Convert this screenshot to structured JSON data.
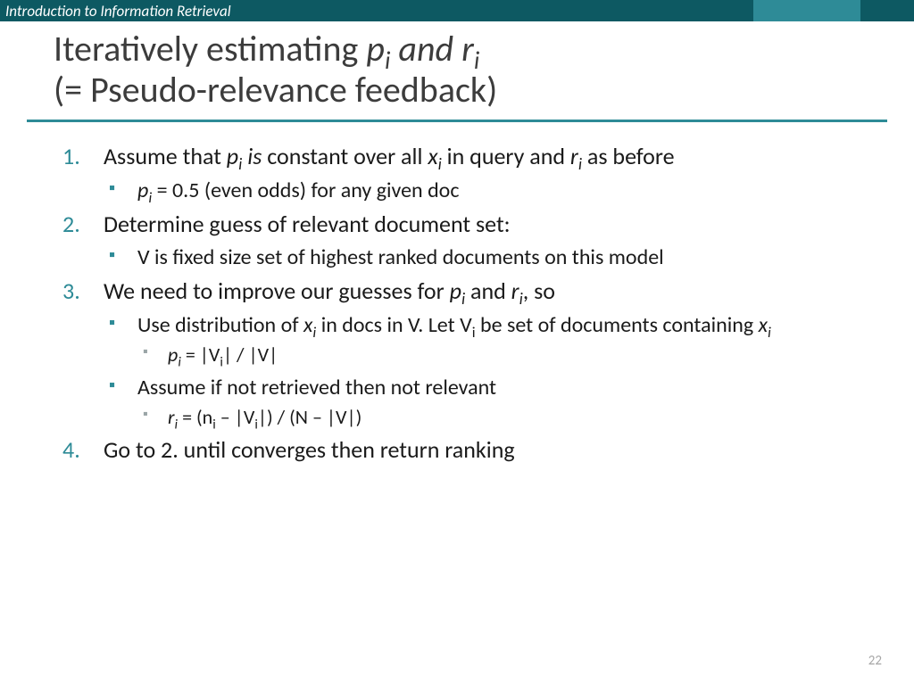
{
  "colors": {
    "header_bg": "#0d5962",
    "accent": "#2e8b97",
    "title": "#3c3c3c",
    "body": "#1a1a1a",
    "sub_bullet": "#9aa5a7",
    "page_num": "#a6a6a6",
    "background": "#ffffff"
  },
  "typography": {
    "title_fontsize": 40,
    "body_fontsize": 26,
    "sub_fontsize": 24,
    "subsub_fontsize": 22,
    "header_fontsize": 17,
    "font_family": "Calibri"
  },
  "header": {
    "course_title": "Introduction to Information Retrieval"
  },
  "title": {
    "line1_a": "Iteratively estimating ",
    "line1_b": "p",
    "line1_c": "i",
    "line1_d": " and r",
    "line1_e": "i",
    "line2": "(= Pseudo-relevance feedback)"
  },
  "items": {
    "i1_a": "Assume that ",
    "i1_b": "p",
    "i1_c": "i",
    "i1_d": " is",
    "i1_e": " constant over all ",
    "i1_f": "x",
    "i1_g": "i",
    "i1_h": "  in query and ",
    "i1_i": "r",
    "i1_j": "i",
    "i1_k": " as before",
    "i1s1_a": "p",
    "i1s1_b": "i",
    "i1s1_c": " = 0.5 (even odds) for any given doc",
    "i2": "Determine guess of relevant document set:",
    "i2s1": "V is fixed size set of highest ranked documents on this model",
    "i3_a": "We need to improve our guesses for ",
    "i3_b": "p",
    "i3_c": "i",
    "i3_d": " and ",
    "i3_e": "r",
    "i3_f": "i",
    "i3_g": ", so",
    "i3s1_a": "Use distribution of ",
    "i3s1_b": "x",
    "i3s1_c": "i",
    "i3s1_d": " in docs in V. Let V",
    "i3s1_e": "i",
    "i3s1_f": " be set of documents containing ",
    "i3s1_g": "x",
    "i3s1_h": "i",
    "i3s1s1_a": "p",
    "i3s1s1_b": "i",
    "i3s1s1_c": " = |V",
    "i3s1s1_d": "i",
    "i3s1s1_e": "| / |V|",
    "i3s2": "Assume if not retrieved then not relevant",
    "i3s2s1_a": "r",
    "i3s2s1_b": "i",
    "i3s2s1_c": "  = (n",
    "i3s2s1_d": "i",
    "i3s2s1_e": " – |V",
    "i3s2s1_f": "i",
    "i3s2s1_g": "|) / (N – |V|)",
    "i4": "Go to 2. until converges then return ranking"
  },
  "page_number": "22"
}
